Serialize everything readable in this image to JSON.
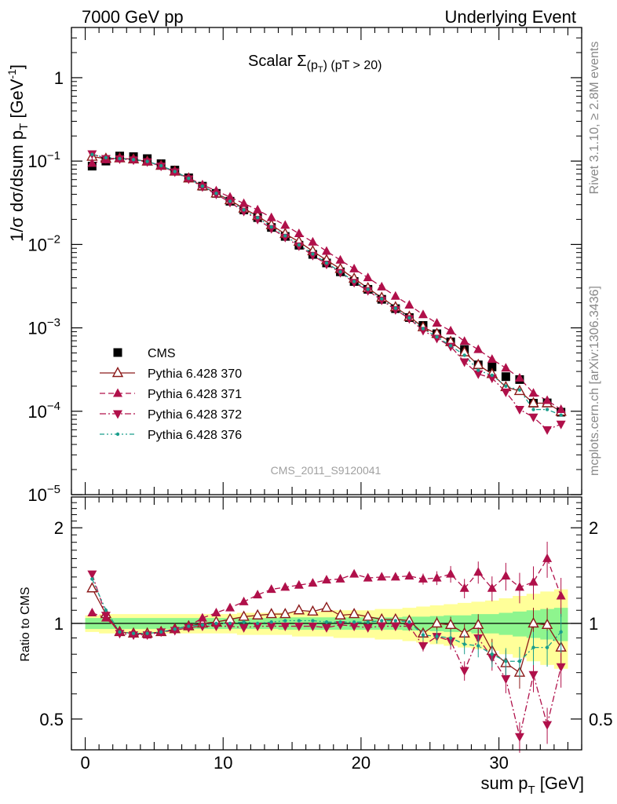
{
  "header": {
    "left": "7000 GeV pp",
    "right": "Underlying Event"
  },
  "side_labels": {
    "rivet": "Rivet 3.1.10, ≥ 2.8M events",
    "site": "mcplots.cern.ch [arXiv:1306.3436]"
  },
  "chart_data": [
    {
      "type": "line",
      "panel": "main",
      "title": "Scalar Σ(p_T) (pT > 20)",
      "title_parts": {
        "prefix": "Scalar ",
        "sigma": "Σ",
        "paren_open": "(p",
        "sub": "T",
        "paren_close": ")",
        "suffix": " (pT > 20)"
      },
      "ylabel": "1/σ dσ/dsum p_T [GeV^-1]",
      "ylabel_parts": {
        "main": "1/σ dσ/dsum p",
        "sub": "T",
        "unit": " [GeV",
        "sup": "-1",
        "close": "]"
      },
      "yscale": "log",
      "ylim": [
        1e-05,
        4
      ],
      "xlim": [
        -1,
        36
      ],
      "ytick_labels": [
        {
          "value": 1,
          "base": "1",
          "exp": ""
        },
        {
          "value": 0.1,
          "base": "10",
          "exp": "−1"
        },
        {
          "value": 0.01,
          "base": "10",
          "exp": "−2"
        },
        {
          "value": 0.001,
          "base": "10",
          "exp": "−3"
        },
        {
          "value": 0.0001,
          "base": "10",
          "exp": "−4"
        },
        {
          "value": 1e-05,
          "base": "10",
          "exp": "−5"
        }
      ],
      "watermark": "CMS_2011_S9120041",
      "legend_position": "lower-left",
      "x": [
        0.5,
        1.5,
        2.5,
        3.5,
        4.5,
        5.5,
        6.5,
        7.5,
        8.5,
        9.5,
        10.5,
        11.5,
        12.5,
        13.5,
        14.5,
        15.5,
        16.5,
        17.5,
        18.5,
        19.5,
        20.5,
        21.5,
        22.5,
        23.5,
        24.5,
        25.5,
        26.5,
        27.5,
        28.5,
        29.5,
        30.5,
        31.5,
        32.5,
        33.5,
        34.5
      ],
      "series": [
        {
          "name": "CMS",
          "color": "#000000",
          "marker": "square",
          "values": [
            0.087,
            0.1,
            0.115,
            0.113,
            0.107,
            0.093,
            0.078,
            0.063,
            0.05,
            0.041,
            0.033,
            0.026,
            0.021,
            0.016,
            0.0125,
            0.0098,
            0.0076,
            0.006,
            0.0047,
            0.0036,
            0.0029,
            0.0022,
            0.0017,
            0.00133,
            0.00107,
            0.00085,
            0.00068,
            0.00055,
            0.00036,
            0.00034,
            0.00026,
            0.00024,
            0.000125,
            0.000126,
            9.75e-05
          ]
        },
        {
          "name": "Pythia 6.428 370",
          "color": "#8b1a1a",
          "marker": "open-triangle-up",
          "line": "solid",
          "values": [
            0.113,
            0.107,
            0.108,
            0.105,
            0.099,
            0.088,
            0.075,
            0.062,
            0.05,
            0.041,
            0.034,
            0.027,
            0.022,
            0.0171,
            0.0134,
            0.0108,
            0.0083,
            0.0065,
            0.0051,
            0.0039,
            0.003,
            0.0023,
            0.00177,
            0.00136,
            0.00102,
            0.00085,
            0.00068,
            0.00051,
            0.00036,
            0.00028,
            0.000195,
            0.000175,
            0.000125,
            0.000125,
            9.9e-05
          ]
        },
        {
          "name": "Pythia 6.428 371",
          "color": "#b0104a",
          "marker": "triangle-up",
          "line": "dashed",
          "values": [
            0.094,
            0.104,
            0.108,
            0.105,
            0.099,
            0.088,
            0.075,
            0.063,
            0.052,
            0.044,
            0.037,
            0.031,
            0.026,
            0.021,
            0.017,
            0.0135,
            0.0107,
            0.0083,
            0.0065,
            0.0051,
            0.004,
            0.0031,
            0.0024,
            0.00188,
            0.00144,
            0.00114,
            0.00092,
            0.00069,
            0.00055,
            0.00042,
            0.00033,
            0.00025,
            0.000165,
            0.000135,
            0.000105
          ]
        },
        {
          "name": "Pythia 6.428 372",
          "color": "#b0104a",
          "marker": "triangle-down",
          "line": "dashdot",
          "values": [
            0.122,
            0.107,
            0.106,
            0.103,
            0.098,
            0.087,
            0.074,
            0.061,
            0.049,
            0.04,
            0.032,
            0.025,
            0.02,
            0.0155,
            0.0122,
            0.0096,
            0.0074,
            0.0058,
            0.0046,
            0.0035,
            0.0028,
            0.00215,
            0.00165,
            0.00129,
            0.00093,
            0.00075,
            0.0006,
            0.00039,
            0.00028,
            0.00025,
            0.00017,
            0.000105,
            8.5e-05,
            6e-05,
            7e-05
          ]
        },
        {
          "name": "Pythia 6.428 376",
          "color": "#1a9e8c",
          "marker": "dot",
          "line": "dashdotdot",
          "values": [
            0.12,
            0.11,
            0.107,
            0.104,
            0.099,
            0.088,
            0.075,
            0.062,
            0.05,
            0.041,
            0.033,
            0.026,
            0.021,
            0.0162,
            0.0127,
            0.0099,
            0.0077,
            0.006,
            0.0047,
            0.0036,
            0.0029,
            0.00223,
            0.00172,
            0.00132,
            0.00098,
            0.00078,
            0.00061,
            0.00047,
            0.00031,
            0.00027,
            0.0002,
            0.00018,
            0.000105,
            0.000105,
            9e-05
          ]
        }
      ]
    },
    {
      "type": "line",
      "panel": "ratio",
      "ylabel": "Ratio to CMS",
      "xlabel": "sum p_T [GeV]",
      "xlabel_parts": {
        "main": "sum p",
        "sub": "T",
        "unit": " [GeV]"
      },
      "yscale": "log",
      "ylim": [
        0.4,
        2.5
      ],
      "xlim": [
        -1,
        36
      ],
      "ytick_labels": [
        "2",
        "1",
        "0.5"
      ],
      "xtick_labels": [
        "0",
        "10",
        "20",
        "30"
      ],
      "bands": [
        {
          "name": "inner",
          "color": "#8ef58e",
          "upper": [
            1.04,
            1.04,
            1.04,
            1.04,
            1.04,
            1.04,
            1.04,
            1.04,
            1.04,
            1.04,
            1.04,
            1.04,
            1.04,
            1.04,
            1.045,
            1.045,
            1.045,
            1.045,
            1.045,
            1.045,
            1.045,
            1.045,
            1.045,
            1.05,
            1.05,
            1.055,
            1.06,
            1.06,
            1.07,
            1.07,
            1.08,
            1.09,
            1.1,
            1.11,
            1.12
          ]
        },
        {
          "name": "outer",
          "color": "#ffff99",
          "upper": [
            1.06,
            1.07,
            1.07,
            1.07,
            1.07,
            1.07,
            1.07,
            1.07,
            1.07,
            1.07,
            1.07,
            1.08,
            1.08,
            1.08,
            1.08,
            1.09,
            1.09,
            1.09,
            1.1,
            1.1,
            1.1,
            1.11,
            1.11,
            1.12,
            1.13,
            1.14,
            1.15,
            1.16,
            1.17,
            1.18,
            1.2,
            1.22,
            1.24,
            1.26,
            1.28
          ]
        }
      ],
      "series": [
        {
          "name": "Pythia 6.428 370",
          "values": [
            1.29,
            1.07,
            0.94,
            0.93,
            0.93,
            0.94,
            0.96,
            0.98,
            1.0,
            1.01,
            1.03,
            1.05,
            1.06,
            1.07,
            1.07,
            1.1,
            1.09,
            1.12,
            1.06,
            1.07,
            1.05,
            1.03,
            1.03,
            1.02,
            0.93,
            1.0,
            0.99,
            0.93,
            0.99,
            0.82,
            0.75,
            0.7,
            1.0,
            0.99,
            0.84
          ]
        },
        {
          "name": "Pythia 6.428 371",
          "values": [
            1.08,
            1.04,
            0.94,
            0.93,
            0.92,
            0.94,
            0.96,
            0.98,
            1.04,
            1.08,
            1.12,
            1.17,
            1.23,
            1.28,
            1.3,
            1.32,
            1.34,
            1.37,
            1.38,
            1.43,
            1.39,
            1.4,
            1.4,
            1.41,
            1.38,
            1.39,
            1.43,
            1.29,
            1.45,
            1.29,
            1.41,
            1.3,
            1.35,
            1.6,
            1.22
          ]
        },
        {
          "name": "Pythia 6.428 372",
          "values": [
            1.43,
            1.06,
            0.93,
            0.92,
            0.92,
            0.94,
            0.95,
            0.97,
            0.98,
            0.98,
            0.98,
            0.97,
            0.98,
            0.98,
            0.98,
            0.98,
            0.98,
            0.97,
            0.99,
            0.98,
            0.97,
            0.98,
            0.98,
            0.98,
            0.85,
            0.91,
            0.88,
            0.71,
            0.9,
            0.78,
            0.67,
            0.44,
            0.69,
            0.48,
            0.73
          ]
        },
        {
          "name": "Pythia 6.428 376",
          "values": [
            1.38,
            1.1,
            0.94,
            0.93,
            0.93,
            0.94,
            0.96,
            0.98,
            0.99,
            1.0,
            1.0,
            1.01,
            1.0,
            1.01,
            1.02,
            1.02,
            1.02,
            1.01,
            1.01,
            1.01,
            1.01,
            1.02,
            1.02,
            1.01,
            0.92,
            0.91,
            0.9,
            0.86,
            0.85,
            0.8,
            0.76,
            0.76,
            0.84,
            0.84,
            0.94
          ]
        }
      ]
    }
  ]
}
